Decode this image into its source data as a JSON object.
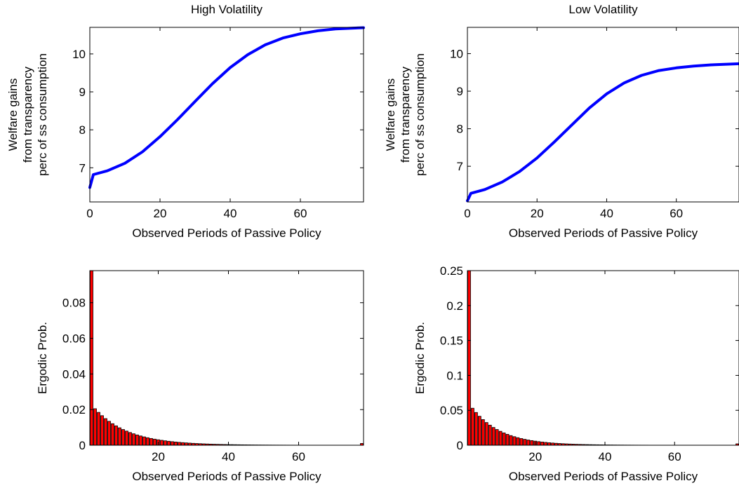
{
  "chart_data": [
    {
      "type": "line",
      "title": "High Volatility",
      "xlabel": "Observed Periods of Passive Policy",
      "ylabel": [
        "Welfare gains",
        "from transparency",
        "perc of ss consumption"
      ],
      "xlim": [
        0,
        78
      ],
      "ylim": [
        6.1,
        10.7
      ],
      "xticks": [
        0,
        20,
        40,
        60
      ],
      "yticks": [
        7,
        8,
        9,
        10
      ],
      "color": "#0000ff",
      "series": [
        {
          "x": [
            0,
            1,
            5,
            10,
            15,
            20,
            25,
            30,
            35,
            40,
            45,
            50,
            55,
            60,
            65,
            70,
            75,
            78
          ],
          "values": [
            6.48,
            6.82,
            6.92,
            7.12,
            7.42,
            7.82,
            8.27,
            8.75,
            9.22,
            9.64,
            9.98,
            10.24,
            10.42,
            10.53,
            10.61,
            10.66,
            10.68,
            10.69
          ]
        }
      ]
    },
    {
      "type": "line",
      "title": "Low Volatility",
      "xlabel": "Observed Periods of Passive Policy",
      "ylabel": [
        "Welfare gains",
        "from transparency",
        "perc of ss consumption"
      ],
      "xlim": [
        0,
        78
      ],
      "ylim": [
        6.05,
        10.7
      ],
      "xticks": [
        0,
        20,
        40,
        60
      ],
      "yticks": [
        7,
        8,
        9,
        10
      ],
      "color": "#0000ff",
      "series": [
        {
          "x": [
            0,
            1,
            5,
            10,
            15,
            20,
            25,
            30,
            35,
            40,
            45,
            50,
            55,
            60,
            65,
            70,
            75,
            78
          ],
          "values": [
            6.08,
            6.28,
            6.38,
            6.58,
            6.86,
            7.22,
            7.65,
            8.1,
            8.55,
            8.93,
            9.22,
            9.42,
            9.55,
            9.62,
            9.67,
            9.7,
            9.72,
            9.73
          ]
        }
      ]
    },
    {
      "type": "bar",
      "xlabel": "Observed Periods of Passive Policy",
      "ylabel": "Ergodic Prob.",
      "xlim": [
        0.5,
        78.5
      ],
      "ylim": [
        0,
        0.098
      ],
      "xticks": [
        20,
        40,
        60
      ],
      "yticks": [
        0,
        0.02,
        0.04,
        0.06,
        0.08
      ],
      "ytick_labels": [
        "0",
        "0.02",
        "0.04",
        "0.06",
        "0.08"
      ],
      "color": "#ff0000",
      "first_value": 0.098,
      "second_value": 0.0205,
      "decay": 0.9,
      "last_value": 0.001
    },
    {
      "type": "bar",
      "xlabel": "Observed Periods of Passive Policy",
      "ylabel": "Ergodic Prob.",
      "xlim": [
        0.5,
        78.5
      ],
      "ylim": [
        0,
        0.25
      ],
      "xticks": [
        20,
        40,
        60
      ],
      "yticks": [
        0,
        0.05,
        0.1,
        0.15,
        0.2,
        0.25
      ],
      "ytick_labels": [
        "0",
        "0.05",
        "0.1",
        "0.15",
        "0.2",
        "0.25"
      ],
      "color": "#ff0000",
      "first_value": 0.25,
      "second_value": 0.053,
      "decay": 0.885,
      "last_value": 0.002
    }
  ]
}
